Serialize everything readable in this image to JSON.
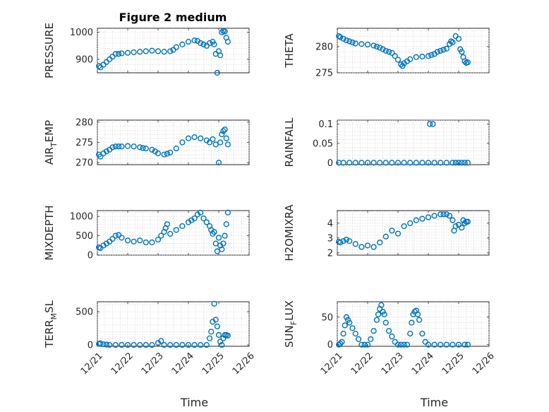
{
  "title": "Figure 2 medium",
  "colors": {
    "marker": "#0072bd",
    "axis": "#262626",
    "grid": "#d0d0d0"
  },
  "chart_data": [
    {
      "type": "scatter",
      "name": "pressure",
      "ylabel": "PRESSURE",
      "xlabel": "",
      "ylim": [
        850,
        1015
      ],
      "yticks": [
        900,
        1000
      ],
      "xlim": [
        0,
        5
      ],
      "xticks": [
        0,
        1,
        2,
        3,
        4,
        5
      ],
      "x": [
        0.05,
        0.1,
        0.2,
        0.3,
        0.4,
        0.5,
        0.6,
        0.7,
        0.8,
        1.0,
        1.2,
        1.4,
        1.6,
        1.8,
        2.0,
        2.2,
        2.4,
        2.5,
        2.6,
        2.8,
        3.0,
        3.2,
        3.3,
        3.4,
        3.5,
        3.6,
        3.7,
        3.8,
        3.85,
        3.9,
        3.95,
        4.0,
        4.05,
        4.1,
        4.15,
        4.2,
        4.25,
        4.3
      ],
      "y": [
        875,
        870,
        880,
        890,
        900,
        910,
        920,
        920,
        922,
        924,
        926,
        928,
        930,
        932,
        930,
        928,
        930,
        935,
        945,
        955,
        965,
        970,
        968,
        960,
        955,
        950,
        960,
        965,
        955,
        920,
        850,
        930,
        915,
        1000,
        1005,
        1003,
        980,
        965
      ]
    },
    {
      "type": "scatter",
      "name": "theta",
      "ylabel": "THETA",
      "xlabel": "",
      "ylim": [
        275,
        283.5
      ],
      "yticks": [
        275,
        280
      ],
      "xlim": [
        0,
        5
      ],
      "xticks": [
        0,
        1,
        2,
        3,
        4,
        5
      ],
      "x": [
        0.05,
        0.1,
        0.2,
        0.3,
        0.4,
        0.5,
        0.6,
        0.8,
        1.0,
        1.2,
        1.3,
        1.4,
        1.5,
        1.6,
        1.7,
        1.8,
        1.9,
        2.0,
        2.1,
        2.15,
        2.2,
        2.3,
        2.4,
        2.6,
        2.8,
        3.0,
        3.1,
        3.2,
        3.3,
        3.4,
        3.5,
        3.6,
        3.7,
        3.75,
        3.8,
        3.9,
        4.0,
        4.05,
        4.1,
        4.15,
        4.2,
        4.25,
        4.3
      ],
      "y": [
        282,
        281.8,
        281.5,
        281.2,
        281.0,
        280.8,
        280.6,
        280.5,
        280.4,
        280.2,
        280.0,
        279.8,
        279.5,
        279.2,
        279.0,
        278.8,
        278.2,
        277.5,
        276.6,
        276.3,
        276.8,
        277.2,
        277.6,
        278.0,
        278.1,
        278.2,
        278.4,
        278.6,
        279.0,
        279.2,
        279.4,
        279.6,
        280.5,
        281.0,
        280.8,
        282.0,
        281.5,
        279.5,
        279.0,
        278.0,
        277.2,
        276.9,
        277.0
      ]
    },
    {
      "type": "scatter",
      "name": "air_temp",
      "ylabel": "AIR_TEMP",
      "xlabel": "",
      "ylim": [
        269.5,
        280.5
      ],
      "yticks": [
        270,
        275,
        280
      ],
      "xlim": [
        0,
        5
      ],
      "xticks": [
        0,
        1,
        2,
        3,
        4,
        5
      ],
      "x": [
        0.05,
        0.1,
        0.2,
        0.3,
        0.4,
        0.5,
        0.6,
        0.7,
        0.8,
        1.0,
        1.2,
        1.4,
        1.5,
        1.6,
        1.8,
        1.9,
        2.0,
        2.2,
        2.3,
        2.4,
        2.6,
        2.8,
        3.0,
        3.2,
        3.4,
        3.6,
        3.7,
        3.8,
        3.9,
        4.0,
        4.05,
        4.1,
        4.15,
        4.2,
        4.25,
        4.3
      ],
      "y": [
        272,
        271.5,
        272.3,
        272.8,
        273.2,
        273.8,
        274,
        274,
        274,
        274.1,
        274,
        273.8,
        273.6,
        273.5,
        273.2,
        272.8,
        272.3,
        272.0,
        272.2,
        272.5,
        273.5,
        275.0,
        276.0,
        276.3,
        276.0,
        275.5,
        275.0,
        275.8,
        274.5,
        270.0,
        275.0,
        277.0,
        277.8,
        278.2,
        276.0,
        274.5
      ]
    },
    {
      "type": "scatter",
      "name": "rainfall",
      "ylabel": "RAINFALL",
      "xlabel": "",
      "ylim": [
        -0.005,
        0.11
      ],
      "yticks": [
        0,
        0.05,
        0.1
      ],
      "ytick_labels": [
        "0",
        "0.05",
        "0.1"
      ],
      "xlim": [
        0,
        5
      ],
      "xticks": [
        0,
        1,
        2,
        3,
        4,
        5
      ],
      "x": [
        0.05,
        0.2,
        0.4,
        0.6,
        0.8,
        1.0,
        1.2,
        1.4,
        1.6,
        1.8,
        2.0,
        2.2,
        2.4,
        2.6,
        2.8,
        3.0,
        3.2,
        3.4,
        3.6,
        3.8,
        3.9,
        4.0,
        4.1,
        4.2,
        4.3,
        3.05,
        3.15
      ],
      "y": [
        0,
        0,
        0,
        0,
        0,
        0,
        0,
        0,
        0,
        0,
        0,
        0,
        0,
        0,
        0,
        0,
        0,
        0,
        0,
        0,
        0,
        0,
        0,
        0,
        0,
        0.1,
        0.1
      ]
    },
    {
      "type": "scatter",
      "name": "mixdepth",
      "ylabel": "MIXDEPTH",
      "xlabel": "",
      "ylim": [
        0,
        1150
      ],
      "yticks": [
        0,
        500,
        1000
      ],
      "xlim": [
        0,
        5
      ],
      "xticks": [
        0,
        1,
        2,
        3,
        4,
        5
      ],
      "x": [
        0.05,
        0.1,
        0.2,
        0.3,
        0.4,
        0.5,
        0.6,
        0.7,
        0.8,
        1.0,
        1.2,
        1.4,
        1.6,
        1.8,
        2.0,
        2.1,
        2.2,
        2.25,
        2.3,
        2.4,
        2.6,
        2.8,
        3.0,
        3.1,
        3.2,
        3.3,
        3.4,
        3.5,
        3.6,
        3.7,
        3.75,
        3.8,
        3.85,
        3.9,
        3.95,
        4.0,
        4.05,
        4.1,
        4.15,
        4.2,
        4.25,
        4.3
      ],
      "y": [
        200,
        180,
        250,
        300,
        350,
        420,
        500,
        520,
        450,
        380,
        350,
        380,
        330,
        330,
        400,
        500,
        600,
        700,
        800,
        550,
        650,
        750,
        850,
        900,
        950,
        1050,
        1100,
        950,
        850,
        750,
        650,
        550,
        600,
        300,
        100,
        450,
        250,
        150,
        300,
        500,
        800,
        1100
      ]
    },
    {
      "type": "scatter",
      "name": "h2omixra",
      "ylabel": "H2OMIXRA",
      "xlabel": "",
      "ylim": [
        1.85,
        4.85
      ],
      "yticks": [
        2,
        3,
        4
      ],
      "xlim": [
        0,
        5
      ],
      "xticks": [
        0,
        1,
        2,
        3,
        4,
        5
      ],
      "x": [
        0.05,
        0.1,
        0.2,
        0.3,
        0.4,
        0.6,
        0.8,
        1.0,
        1.2,
        1.4,
        1.6,
        1.8,
        2.0,
        2.2,
        2.4,
        2.6,
        2.8,
        3.0,
        3.2,
        3.4,
        3.5,
        3.6,
        3.7,
        3.8,
        3.85,
        3.9,
        4.0,
        4.1,
        4.15,
        4.2,
        4.25,
        4.3
      ],
      "y": [
        2.75,
        2.7,
        2.8,
        2.9,
        2.8,
        2.6,
        2.4,
        2.5,
        2.4,
        2.7,
        3.1,
        3.5,
        3.3,
        3.8,
        4.0,
        4.2,
        4.3,
        4.4,
        4.5,
        4.6,
        4.6,
        4.6,
        4.5,
        4.2,
        3.5,
        3.8,
        3.9,
        3.7,
        4.2,
        4.0,
        4.1,
        4.1
      ]
    },
    {
      "type": "scatter",
      "name": "terr_msl",
      "ylabel": "TERR_MSL",
      "xlabel": "Time",
      "ylim": [
        -20,
        650
      ],
      "yticks": [
        0,
        500
      ],
      "xlim": [
        0,
        5
      ],
      "xticks": [
        0,
        1,
        2,
        3,
        4,
        5
      ],
      "xtick_labels": [
        "12/21",
        "12/22",
        "12/23",
        "12/24",
        "12/25",
        "12/26"
      ],
      "x": [
        0.05,
        0.1,
        0.2,
        0.3,
        0.4,
        0.6,
        0.8,
        1.0,
        1.2,
        1.4,
        1.6,
        1.8,
        2.0,
        2.1,
        2.2,
        2.4,
        2.6,
        2.8,
        3.0,
        3.2,
        3.4,
        3.6,
        3.7,
        3.75,
        3.8,
        3.85,
        3.9,
        3.95,
        4.0,
        4.05,
        4.1,
        4.15,
        4.2,
        4.25,
        4.3
      ],
      "y": [
        15,
        25,
        10,
        5,
        0,
        0,
        0,
        0,
        0,
        0,
        0,
        0,
        30,
        60,
        0,
        0,
        0,
        0,
        0,
        0,
        0,
        0,
        100,
        200,
        350,
        620,
        380,
        280,
        150,
        50,
        0,
        100,
        150,
        150,
        140
      ]
    },
    {
      "type": "scatter",
      "name": "sun_flux",
      "ylabel": "SUN_FLUX",
      "xlabel": "Time",
      "ylim": [
        -3,
        78
      ],
      "yticks": [
        0,
        50
      ],
      "xlim": [
        0,
        5
      ],
      "xticks": [
        0,
        1,
        2,
        3,
        4,
        5
      ],
      "xtick_labels": [
        "12/21",
        "12/22",
        "12/23",
        "12/24",
        "12/25",
        "12/26"
      ],
      "x": [
        0.05,
        0.1,
        0.15,
        0.2,
        0.25,
        0.3,
        0.35,
        0.4,
        0.5,
        0.6,
        0.7,
        0.8,
        0.9,
        1.0,
        1.1,
        1.2,
        1.3,
        1.35,
        1.4,
        1.45,
        1.5,
        1.55,
        1.6,
        1.7,
        1.8,
        1.9,
        2.0,
        2.1,
        2.2,
        2.3,
        2.4,
        2.45,
        2.5,
        2.55,
        2.6,
        2.65,
        2.7,
        2.8,
        2.9,
        3.0,
        3.2,
        3.4,
        3.6,
        3.8,
        4.0,
        4.2,
        4.3
      ],
      "y": [
        0,
        2,
        5,
        20,
        35,
        50,
        45,
        40,
        30,
        20,
        10,
        0,
        0,
        0,
        10,
        25,
        45,
        55,
        65,
        72,
        60,
        55,
        40,
        25,
        15,
        5,
        0,
        0,
        0,
        0,
        20,
        40,
        55,
        60,
        62,
        55,
        45,
        20,
        5,
        0,
        0,
        0,
        0,
        0,
        0,
        0,
        0
      ]
    }
  ]
}
